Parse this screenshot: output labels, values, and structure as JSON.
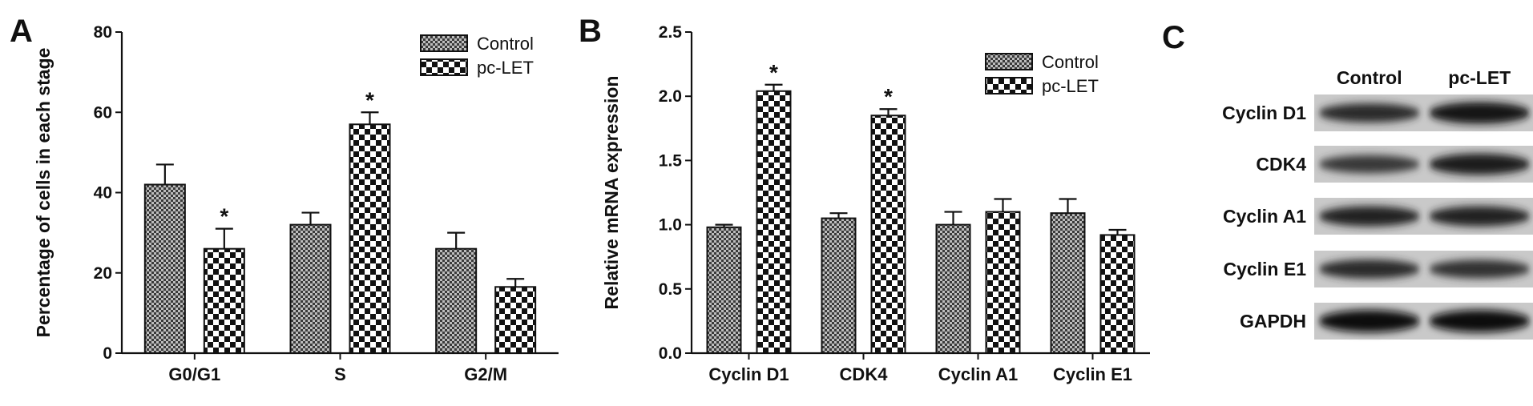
{
  "figure": {
    "panels": {
      "A": "A",
      "B": "B",
      "C": "C"
    }
  },
  "chart_data": [
    {
      "type": "bar",
      "panel": "A",
      "title": "",
      "xlabel": "",
      "ylabel": "Percentage of cells in each stage",
      "ylim": [
        0,
        80
      ],
      "yticks": [
        0,
        20,
        40,
        60,
        80
      ],
      "categories": [
        "G0/G1",
        "S",
        "G2/M"
      ],
      "series": [
        {
          "name": "Control",
          "values": [
            42,
            32,
            26
          ],
          "errors": [
            5,
            3,
            4
          ],
          "pattern": "fine-grid"
        },
        {
          "name": "pc-LET",
          "values": [
            26,
            57,
            16.5
          ],
          "errors": [
            5,
            3,
            2
          ],
          "pattern": "checker"
        }
      ],
      "significance": [
        {
          "category": "G0/G1",
          "series": "pc-LET",
          "mark": "*"
        },
        {
          "category": "S",
          "series": "pc-LET",
          "mark": "*"
        }
      ],
      "legend": "top-right",
      "grid": false
    },
    {
      "type": "bar",
      "panel": "B",
      "title": "",
      "xlabel": "",
      "ylabel": "Relative mRNA expression",
      "ylim": [
        0,
        2.5
      ],
      "yticks": [
        "0.0",
        "0.5",
        "1.0",
        "1.5",
        "2.0",
        "2.5"
      ],
      "categories": [
        "Cyclin D1",
        "CDK4",
        "Cyclin A1",
        "Cyclin E1"
      ],
      "series": [
        {
          "name": "Control",
          "values": [
            0.98,
            1.05,
            1.0,
            1.09
          ],
          "errors": [
            0.02,
            0.04,
            0.1,
            0.11
          ],
          "pattern": "fine-grid"
        },
        {
          "name": "pc-LET",
          "values": [
            2.04,
            1.85,
            1.1,
            0.92
          ],
          "errors": [
            0.05,
            0.05,
            0.1,
            0.04
          ],
          "pattern": "checker"
        }
      ],
      "significance": [
        {
          "category": "Cyclin D1",
          "series": "pc-LET",
          "mark": "*"
        },
        {
          "category": "CDK4",
          "series": "pc-LET",
          "mark": "*"
        }
      ],
      "legend": "top-right",
      "grid": false
    }
  ],
  "western_blot": {
    "panel": "C",
    "columns": [
      "Control",
      "pc-LET"
    ],
    "rows": [
      {
        "label": "Cyclin D1",
        "intensity": [
          0.72,
          0.95
        ]
      },
      {
        "label": "CDK4",
        "intensity": [
          0.62,
          0.9
        ]
      },
      {
        "label": "Cyclin A1",
        "intensity": [
          0.8,
          0.8
        ]
      },
      {
        "label": "Cyclin E1",
        "intensity": [
          0.72,
          0.66
        ]
      },
      {
        "label": "GAPDH",
        "intensity": [
          1.0,
          1.0
        ]
      }
    ]
  }
}
